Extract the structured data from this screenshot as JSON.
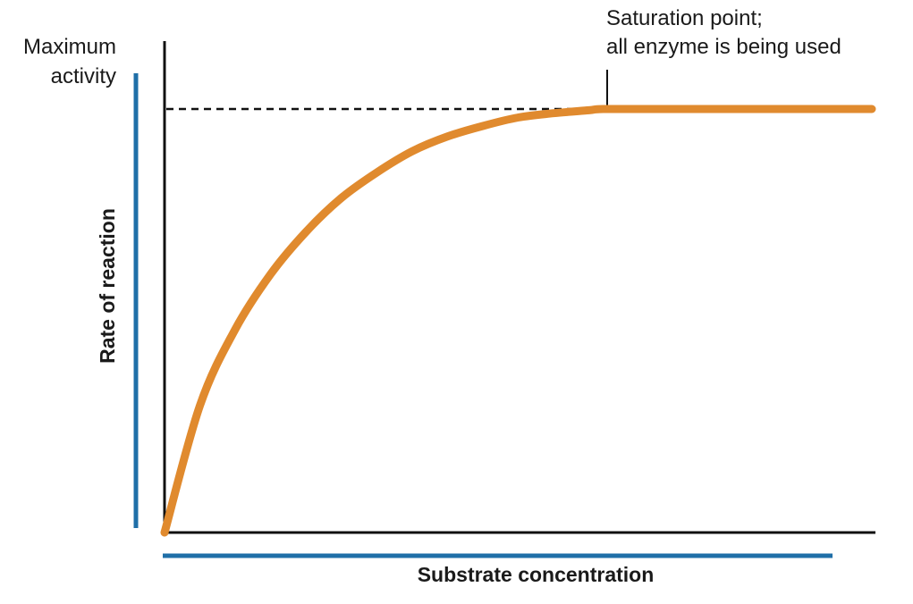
{
  "colors": {
    "curve": "#e08a2e",
    "axis_bar": "#1f6fa8",
    "axis": "#111111",
    "guide": "#111111"
  },
  "chart_data": {
    "type": "line",
    "xlabel": "Substrate concentration",
    "ylabel": "Rate of reaction",
    "xlim": [
      0,
      1
    ],
    "ylim": [
      0,
      1
    ],
    "grid": false,
    "legend": "none",
    "series": [
      {
        "x": [
          0,
          0.05,
          0.1,
          0.15,
          0.2,
          0.25,
          0.3,
          0.35,
          0.4,
          0.45,
          0.5,
          0.55,
          0.6,
          0.62,
          0.7,
          0.8,
          0.9,
          1.0
        ],
        "y": [
          0,
          0.3,
          0.48,
          0.61,
          0.71,
          0.79,
          0.85,
          0.9,
          0.935,
          0.96,
          0.98,
          0.99,
          0.997,
          1.0,
          1.0,
          1.0,
          1.0,
          1.0
        ]
      }
    ],
    "annotations": {
      "max_activity": {
        "line1": "Maximum",
        "line2": "activity",
        "y": 1.0
      },
      "saturation": {
        "line1": "Saturation point;",
        "line2": "all enzyme is being used",
        "x": 0.62,
        "y": 1.0
      }
    }
  }
}
